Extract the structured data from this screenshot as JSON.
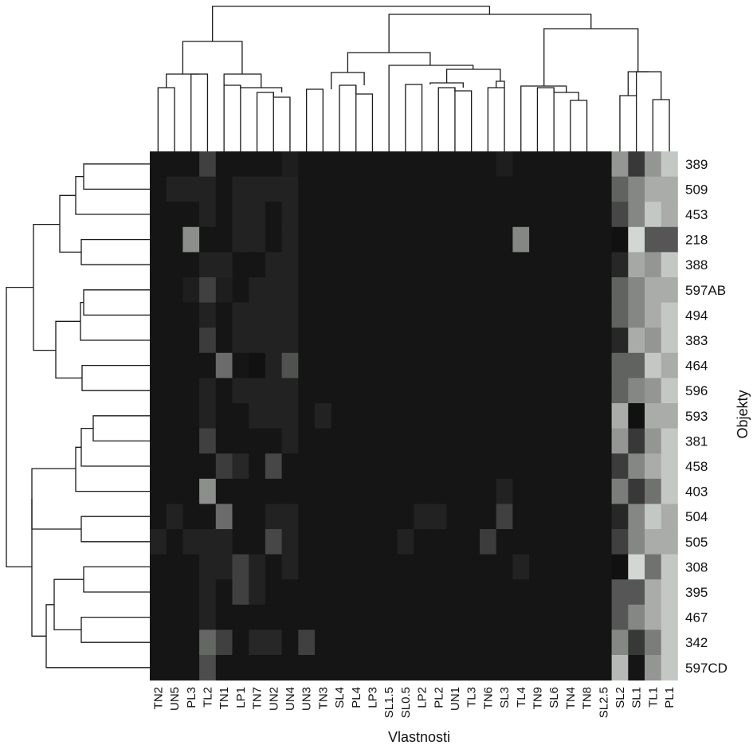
{
  "chart_data": {
    "type": "heatmap",
    "xlabel": "Vlastnosti",
    "ylabel": "Objekty",
    "columns": [
      "TN2",
      "UN5",
      "PL3",
      "TL2",
      "TN1",
      "LP1",
      "TN7",
      "UN2",
      "UN4",
      "UN3",
      "TN3",
      "SL4",
      "PL4",
      "LP3",
      "SL1.5",
      "SL0.5",
      "LP2",
      "PL2",
      "UN1",
      "TL3",
      "TN6",
      "SL3",
      "TL4",
      "TN9",
      "SL6",
      "TN4",
      "TN8",
      "SL2.5",
      "SL2",
      "SL1",
      "TL1",
      "PL1"
    ],
    "rows": [
      "389",
      "509",
      "453",
      "218",
      "388",
      "597AB",
      "494",
      "383",
      "464",
      "596",
      "593",
      "381",
      "458",
      "403",
      "504",
      "505",
      "308",
      "395",
      "467",
      "342",
      "597CD"
    ],
    "values": [
      [
        0.02,
        0.02,
        0.02,
        0.22,
        0.02,
        0.02,
        0.02,
        0.02,
        0.06,
        0.02,
        0.02,
        0.02,
        0.02,
        0.02,
        0.02,
        0.02,
        0.02,
        0.02,
        0.02,
        0.02,
        0.02,
        0.06,
        0.02,
        0.02,
        0.02,
        0.02,
        0.02,
        0.02,
        0.62,
        0.18,
        0.62,
        0.85
      ],
      [
        0.02,
        0.08,
        0.08,
        0.08,
        0.02,
        0.08,
        0.08,
        0.08,
        0.08,
        0.02,
        0.02,
        0.02,
        0.02,
        0.02,
        0.02,
        0.02,
        0.02,
        0.02,
        0.02,
        0.02,
        0.02,
        0.02,
        0.02,
        0.02,
        0.02,
        0.02,
        0.02,
        0.02,
        0.38,
        0.55,
        0.72,
        0.72
      ],
      [
        0.02,
        0.02,
        0.02,
        0.08,
        0.02,
        0.08,
        0.08,
        0.02,
        0.08,
        0.02,
        0.02,
        0.02,
        0.02,
        0.02,
        0.02,
        0.02,
        0.02,
        0.02,
        0.02,
        0.02,
        0.02,
        0.02,
        0.02,
        0.02,
        0.02,
        0.02,
        0.02,
        0.02,
        0.25,
        0.55,
        0.85,
        0.72
      ],
      [
        0.02,
        0.02,
        0.58,
        0.02,
        0.02,
        0.08,
        0.08,
        0.02,
        0.08,
        0.02,
        0.02,
        0.02,
        0.02,
        0.02,
        0.02,
        0.02,
        0.02,
        0.02,
        0.02,
        0.02,
        0.02,
        0.02,
        0.55,
        0.02,
        0.02,
        0.02,
        0.02,
        0.02,
        0.0,
        0.92,
        0.32,
        0.32
      ],
      [
        0.02,
        0.02,
        0.02,
        0.08,
        0.08,
        0.02,
        0.02,
        0.08,
        0.08,
        0.02,
        0.02,
        0.02,
        0.02,
        0.02,
        0.02,
        0.02,
        0.02,
        0.02,
        0.02,
        0.02,
        0.02,
        0.02,
        0.02,
        0.02,
        0.02,
        0.02,
        0.02,
        0.02,
        0.1,
        0.7,
        0.62,
        0.85
      ],
      [
        0.02,
        0.02,
        0.06,
        0.22,
        0.06,
        0.02,
        0.08,
        0.08,
        0.08,
        0.02,
        0.02,
        0.02,
        0.02,
        0.02,
        0.02,
        0.02,
        0.02,
        0.02,
        0.02,
        0.02,
        0.02,
        0.02,
        0.02,
        0.02,
        0.02,
        0.02,
        0.02,
        0.02,
        0.38,
        0.55,
        0.72,
        0.72
      ],
      [
        0.02,
        0.02,
        0.02,
        0.08,
        0.02,
        0.08,
        0.08,
        0.08,
        0.08,
        0.02,
        0.02,
        0.02,
        0.02,
        0.02,
        0.02,
        0.02,
        0.02,
        0.02,
        0.02,
        0.02,
        0.02,
        0.02,
        0.02,
        0.02,
        0.02,
        0.02,
        0.02,
        0.02,
        0.38,
        0.55,
        0.72,
        0.85
      ],
      [
        0.02,
        0.02,
        0.02,
        0.2,
        0.02,
        0.08,
        0.08,
        0.08,
        0.08,
        0.02,
        0.02,
        0.02,
        0.02,
        0.02,
        0.02,
        0.02,
        0.02,
        0.02,
        0.02,
        0.02,
        0.02,
        0.02,
        0.02,
        0.02,
        0.02,
        0.02,
        0.02,
        0.02,
        0.1,
        0.72,
        0.62,
        0.85
      ],
      [
        0.02,
        0.02,
        0.02,
        0.02,
        0.42,
        0.02,
        0.0,
        0.08,
        0.3,
        0.02,
        0.02,
        0.02,
        0.02,
        0.02,
        0.02,
        0.02,
        0.02,
        0.02,
        0.02,
        0.02,
        0.02,
        0.02,
        0.02,
        0.02,
        0.02,
        0.02,
        0.02,
        0.02,
        0.38,
        0.38,
        0.85,
        0.72
      ],
      [
        0.02,
        0.02,
        0.02,
        0.08,
        0.02,
        0.08,
        0.08,
        0.08,
        0.08,
        0.02,
        0.02,
        0.02,
        0.02,
        0.02,
        0.02,
        0.02,
        0.02,
        0.02,
        0.02,
        0.02,
        0.02,
        0.02,
        0.02,
        0.02,
        0.02,
        0.02,
        0.02,
        0.02,
        0.38,
        0.55,
        0.62,
        0.85
      ],
      [
        0.02,
        0.02,
        0.02,
        0.08,
        0.02,
        0.02,
        0.08,
        0.08,
        0.08,
        0.02,
        0.08,
        0.02,
        0.02,
        0.02,
        0.02,
        0.02,
        0.02,
        0.02,
        0.02,
        0.02,
        0.02,
        0.02,
        0.02,
        0.02,
        0.02,
        0.02,
        0.02,
        0.02,
        0.72,
        0.0,
        0.72,
        0.72
      ],
      [
        0.02,
        0.02,
        0.02,
        0.22,
        0.02,
        0.02,
        0.02,
        0.02,
        0.08,
        0.02,
        0.02,
        0.02,
        0.02,
        0.02,
        0.02,
        0.02,
        0.02,
        0.02,
        0.02,
        0.02,
        0.02,
        0.02,
        0.02,
        0.02,
        0.02,
        0.02,
        0.02,
        0.02,
        0.62,
        0.18,
        0.62,
        0.85
      ],
      [
        0.02,
        0.02,
        0.02,
        0.02,
        0.2,
        0.1,
        0.02,
        0.25,
        0.02,
        0.02,
        0.02,
        0.02,
        0.02,
        0.02,
        0.02,
        0.02,
        0.02,
        0.02,
        0.02,
        0.02,
        0.02,
        0.02,
        0.02,
        0.02,
        0.02,
        0.02,
        0.02,
        0.02,
        0.2,
        0.55,
        0.72,
        0.85
      ],
      [
        0.02,
        0.02,
        0.02,
        0.58,
        0.02,
        0.02,
        0.02,
        0.02,
        0.02,
        0.02,
        0.02,
        0.02,
        0.02,
        0.02,
        0.02,
        0.02,
        0.02,
        0.02,
        0.02,
        0.02,
        0.02,
        0.08,
        0.02,
        0.02,
        0.02,
        0.02,
        0.02,
        0.02,
        0.5,
        0.18,
        0.45,
        0.85
      ],
      [
        0.02,
        0.08,
        0.02,
        0.02,
        0.42,
        0.02,
        0.02,
        0.08,
        0.08,
        0.02,
        0.02,
        0.02,
        0.02,
        0.02,
        0.02,
        0.02,
        0.08,
        0.08,
        0.02,
        0.02,
        0.02,
        0.22,
        0.02,
        0.02,
        0.02,
        0.02,
        0.02,
        0.02,
        0.1,
        0.55,
        0.85,
        0.72
      ],
      [
        0.08,
        0.02,
        0.08,
        0.08,
        0.08,
        0.02,
        0.02,
        0.25,
        0.08,
        0.02,
        0.02,
        0.02,
        0.02,
        0.02,
        0.02,
        0.08,
        0.02,
        0.02,
        0.02,
        0.02,
        0.2,
        0.02,
        0.02,
        0.02,
        0.02,
        0.02,
        0.02,
        0.02,
        0.22,
        0.55,
        0.72,
        0.72
      ],
      [
        0.02,
        0.02,
        0.02,
        0.08,
        0.08,
        0.22,
        0.08,
        0.02,
        0.08,
        0.02,
        0.02,
        0.02,
        0.02,
        0.02,
        0.02,
        0.02,
        0.02,
        0.02,
        0.02,
        0.02,
        0.02,
        0.02,
        0.08,
        0.02,
        0.02,
        0.02,
        0.02,
        0.02,
        0.0,
        0.92,
        0.45,
        0.85
      ],
      [
        0.02,
        0.02,
        0.02,
        0.08,
        0.02,
        0.22,
        0.08,
        0.02,
        0.02,
        0.02,
        0.02,
        0.02,
        0.02,
        0.02,
        0.02,
        0.02,
        0.02,
        0.02,
        0.02,
        0.02,
        0.02,
        0.02,
        0.02,
        0.02,
        0.02,
        0.02,
        0.02,
        0.02,
        0.32,
        0.32,
        0.72,
        0.85
      ],
      [
        0.02,
        0.02,
        0.02,
        0.08,
        0.02,
        0.02,
        0.02,
        0.02,
        0.02,
        0.02,
        0.02,
        0.02,
        0.02,
        0.02,
        0.02,
        0.02,
        0.02,
        0.02,
        0.02,
        0.02,
        0.02,
        0.02,
        0.02,
        0.02,
        0.02,
        0.02,
        0.02,
        0.02,
        0.32,
        0.55,
        0.72,
        0.85
      ],
      [
        0.02,
        0.02,
        0.02,
        0.4,
        0.22,
        0.02,
        0.1,
        0.1,
        0.02,
        0.22,
        0.02,
        0.02,
        0.02,
        0.02,
        0.02,
        0.02,
        0.02,
        0.02,
        0.02,
        0.02,
        0.02,
        0.02,
        0.02,
        0.02,
        0.02,
        0.02,
        0.02,
        0.02,
        0.55,
        0.18,
        0.5,
        0.85
      ],
      [
        0.02,
        0.02,
        0.02,
        0.28,
        0.02,
        0.02,
        0.02,
        0.02,
        0.02,
        0.02,
        0.02,
        0.02,
        0.02,
        0.02,
        0.02,
        0.02,
        0.02,
        0.02,
        0.02,
        0.02,
        0.02,
        0.02,
        0.02,
        0.02,
        0.02,
        0.02,
        0.02,
        0.02,
        0.78,
        0.02,
        0.62,
        0.85
      ]
    ],
    "value_range": [
      0,
      1
    ],
    "color_low": "#111111",
    "color_high": "#e4e8e4",
    "grid": false,
    "col_dendrogram": {
      "position": "top",
      "merges": [
        [
          [
            18,
            19
          ],
          0.09
        ],
        [
          [
            14,
            16
          ],
          0.1
        ],
        [
          [
            13,
            15
          ],
          0.12
        ],
        [
          [
            17,
            20
          ],
          0.14
        ],
        [
          [
            11,
            12
          ],
          0.17
        ],
        [
          [
            9,
            10
          ],
          0.19
        ],
        [
          [
            21,
            22
          ],
          0.22
        ],
        [
          [
            23,
            24
          ],
          0.3
        ],
        [
          [
            4,
            5
          ],
          0.33
        ],
        [
          [
            0,
            1
          ],
          0.37
        ],
        [
          [
            2,
            3
          ],
          0.37
        ],
        [
          [
            6,
            7
          ],
          0.39
        ],
        [
          [
            8,
            25
          ],
          0.41
        ],
        [
          [
            26,
            27
          ],
          0.46
        ],
        [
          [
            28,
            29
          ],
          0.48
        ],
        [
          [
            30,
            31
          ],
          0.49
        ],
        [
          [
            32,
            33
          ],
          0.52
        ],
        [
          [
            34,
            35
          ],
          0.62
        ],
        [
          [
            36,
            37
          ],
          0.57
        ],
        [
          [
            38,
            39
          ],
          0.7
        ],
        [
          [
            40,
            41
          ],
          0.82
        ],
        [
          [
            42,
            43
          ],
          0.92
        ],
        [
          [
            44,
            45
          ],
          0.98
        ],
        [
          [
            46,
            47
          ],
          1.0
        ],
        [
          [
            48,
            49
          ],
          0.68
        ],
        [
          [
            50,
            51
          ],
          1.0
        ]
      ]
    },
    "row_dendrogram": {
      "position": "left",
      "merges": [
        [
          [
            0,
            1
          ],
          0.62
        ],
        [
          [
            6,
            7
          ],
          0.62
        ],
        [
          [
            8,
            9
          ],
          0.6
        ],
        [
          [
            11,
            12
          ],
          0.6
        ],
        [
          [
            16,
            17
          ],
          0.6
        ],
        [
          [
            18,
            19
          ],
          0.58
        ]
      ]
    }
  }
}
